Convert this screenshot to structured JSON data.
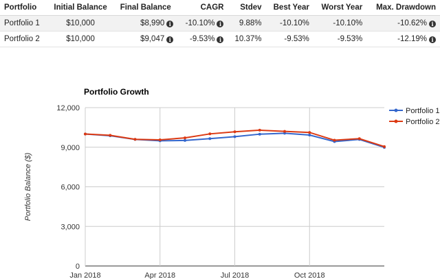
{
  "table": {
    "headers": [
      "Portfolio",
      "Initial Balance",
      "Final Balance",
      "CAGR",
      "Stdev",
      "Best Year",
      "Worst Year",
      "Max. Drawdown"
    ],
    "rows": [
      {
        "portfolio": "Portfolio 1",
        "initial": "$10,000",
        "final": "$8,990",
        "cagr": "-10.10%",
        "stdev": "9.88%",
        "best": "-10.10%",
        "worst": "-10.10%",
        "drawdown": "-10.62%"
      },
      {
        "portfolio": "Portfolio 2",
        "initial": "$10,000",
        "final": "$9,047",
        "cagr": "-9.53%",
        "stdev": "10.37%",
        "best": "-9.53%",
        "worst": "-9.53%",
        "drawdown": "-12.19%"
      }
    ],
    "info_icon": "info-circle-icon"
  },
  "chart_data": {
    "type": "line",
    "title": "Portfolio Growth",
    "ylabel": "Portfolio Balance ($)",
    "xlabel": "",
    "x": [
      "2018-01",
      "2018-02",
      "2018-03",
      "2018-04",
      "2018-05",
      "2018-06",
      "2018-07",
      "2018-08",
      "2018-09",
      "2018-10",
      "2018-11",
      "2018-12",
      "2018-12-31"
    ],
    "xticks": [
      {
        "x": "2018-01",
        "label": "Jan 2018"
      },
      {
        "x": "2018-04",
        "label": "Apr 2018"
      },
      {
        "x": "2018-07",
        "label": "Jul 2018"
      },
      {
        "x": "2018-10",
        "label": "Oct 2018"
      }
    ],
    "ylim": [
      0,
      12000
    ],
    "yticks": [
      {
        "value": 0,
        "label": "0"
      },
      {
        "value": 3000,
        "label": "3,000"
      },
      {
        "value": 6000,
        "label": "6,000"
      },
      {
        "value": 9000,
        "label": "9,000"
      },
      {
        "value": 12000,
        "label": "12,000"
      }
    ],
    "grid": true,
    "legend": "right",
    "series": [
      {
        "name": "Portfolio 1",
        "color": "#3366cc",
        "values": [
          10000,
          9870,
          9590,
          9490,
          9510,
          9650,
          9800,
          9990,
          10060,
          9920,
          9430,
          9590,
          8990
        ]
      },
      {
        "name": "Portfolio 2",
        "color": "#dc3912",
        "values": [
          10000,
          9900,
          9600,
          9560,
          9710,
          10010,
          10170,
          10290,
          10200,
          10120,
          9530,
          9650,
          9047
        ]
      }
    ]
  }
}
